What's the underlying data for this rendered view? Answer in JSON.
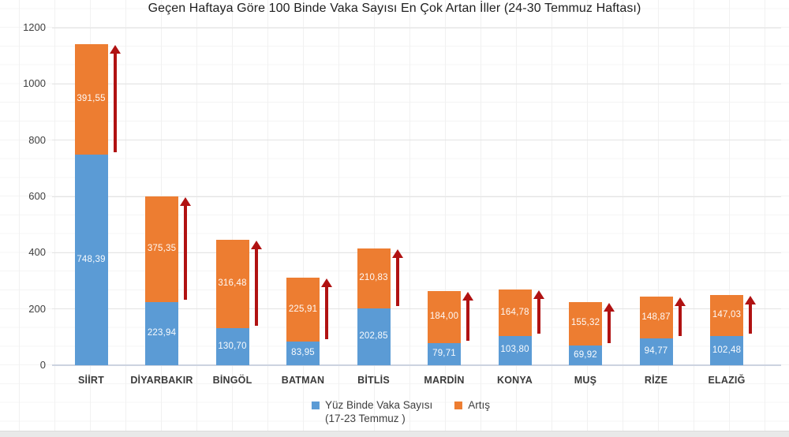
{
  "chart_data": {
    "type": "bar",
    "stacked": true,
    "title": "Geçen Haftaya Göre 100 Binde Vaka Sayısı En Çok Artan İller (24-30 Temmuz Haftası)",
    "categories": [
      "SİİRT",
      "DİYARBAKIR",
      "BİNGÖL",
      "BATMAN",
      "BİTLİS",
      "MARDİN",
      "KONYA",
      "MUŞ",
      "RİZE",
      "ELAZIĞ"
    ],
    "series": [
      {
        "name": "Yüz Binde Vaka Sayısı (17-23 Temmuz )",
        "color": "#5B9BD5",
        "values": [
          748.39,
          223.94,
          130.7,
          83.95,
          202.85,
          79.71,
          103.8,
          69.92,
          94.77,
          102.48
        ],
        "labels": [
          "748,39",
          "223,94",
          "130,70",
          "83,95",
          "202,85",
          "79,71",
          "103,80",
          "69,92",
          "94,77",
          "102,48"
        ]
      },
      {
        "name": "Artış",
        "color": "#ED7D31",
        "values": [
          391.55,
          375.35,
          316.48,
          225.91,
          210.83,
          184.0,
          164.78,
          155.32,
          148.87,
          147.03
        ],
        "labels": [
          "391,55",
          "375,35",
          "316,48",
          "225,91",
          "210,83",
          "184,00",
          "164,78",
          "155,32",
          "148,87",
          "147,03"
        ]
      }
    ],
    "ylim": [
      0,
      1200
    ],
    "yticks": [
      0,
      200,
      400,
      600,
      800,
      1000,
      1200
    ],
    "grid": true,
    "legend_position": "bottom",
    "annotations": {
      "type": "increase-arrow",
      "color": "#B01212",
      "description": "dark red upward arrow beside each bar spanning the Artış segment"
    }
  },
  "legend": {
    "items": [
      {
        "swatch_color": "#5B9BD5",
        "line1": "Yüz Binde Vaka Sayısı",
        "line2": "(17-23 Temmuz )"
      },
      {
        "swatch_color": "#ED7D31",
        "line1": "Artış",
        "line2": ""
      }
    ]
  },
  "colors": {
    "bar_blue": "#5B9BD5",
    "bar_orange": "#ED7D31",
    "arrow_red": "#B01212",
    "gridline": "#e4e4e4",
    "axis_line": "#ccd3e0",
    "title_text": "#1f1f1f",
    "tick_text": "#404040"
  }
}
